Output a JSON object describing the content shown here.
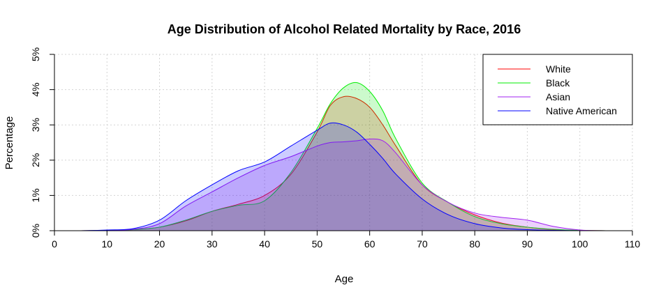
{
  "chart_data": {
    "type": "area",
    "title": "Age Distribution of Alcohol Related Mortality by Race, 2016",
    "xlabel": "Age",
    "ylabel": "Percentage",
    "xlim": [
      0,
      110
    ],
    "ylim": [
      0,
      5
    ],
    "x_ticks": [
      0,
      10,
      20,
      30,
      40,
      50,
      60,
      70,
      80,
      90,
      100,
      110
    ],
    "x_tick_labels": [
      "0",
      "10",
      "20",
      "30",
      "40",
      "50",
      "60",
      "70",
      "80",
      "90",
      "100",
      "110"
    ],
    "y_ticks": [
      0,
      1,
      2,
      3,
      4,
      5
    ],
    "y_tick_labels": [
      "0%",
      "1%",
      "2%",
      "3%",
      "4%",
      "5%"
    ],
    "grid": true,
    "legend_position": "top-right",
    "x": [
      0,
      5,
      10,
      15,
      20,
      25,
      30,
      35,
      40,
      45,
      50,
      52.5,
      55,
      57.5,
      60,
      62.5,
      65,
      70,
      75,
      80,
      85,
      90,
      95,
      100,
      105
    ],
    "series": [
      {
        "name": "White",
        "color": "#ff0000",
        "fill": "rgba(255,0,0,0.2)",
        "values": [
          0,
          0,
          0.01,
          0.03,
          0.1,
          0.28,
          0.55,
          0.75,
          1.0,
          1.6,
          2.8,
          3.55,
          3.8,
          3.75,
          3.5,
          3.0,
          2.4,
          1.3,
          0.8,
          0.45,
          0.22,
          0.1,
          0.03,
          0.01,
          0
        ]
      },
      {
        "name": "Black",
        "color": "#00ee00",
        "fill": "rgba(0,230,0,0.2)",
        "values": [
          0,
          0,
          0.01,
          0.03,
          0.1,
          0.3,
          0.55,
          0.72,
          0.85,
          1.65,
          2.9,
          3.6,
          4.05,
          4.2,
          3.95,
          3.4,
          2.6,
          1.35,
          0.8,
          0.4,
          0.2,
          0.1,
          0.04,
          0.01,
          0
        ]
      },
      {
        "name": "Asian",
        "color": "#a020f0",
        "fill": "rgba(160,32,240,0.2)",
        "values": [
          0,
          0,
          0.01,
          0.04,
          0.2,
          0.7,
          1.1,
          1.5,
          1.85,
          2.1,
          2.4,
          2.5,
          2.52,
          2.55,
          2.6,
          2.55,
          2.2,
          1.3,
          0.8,
          0.5,
          0.38,
          0.3,
          0.12,
          0.02,
          0
        ]
      },
      {
        "name": "Native American",
        "color": "#0000ff",
        "fill": "rgba(0,0,255,0.2)",
        "values": [
          0,
          0,
          0.02,
          0.06,
          0.3,
          0.85,
          1.3,
          1.7,
          1.95,
          2.4,
          2.85,
          3.05,
          3.0,
          2.8,
          2.45,
          2.05,
          1.6,
          0.9,
          0.45,
          0.2,
          0.08,
          0.03,
          0.01,
          0,
          0
        ]
      }
    ]
  }
}
